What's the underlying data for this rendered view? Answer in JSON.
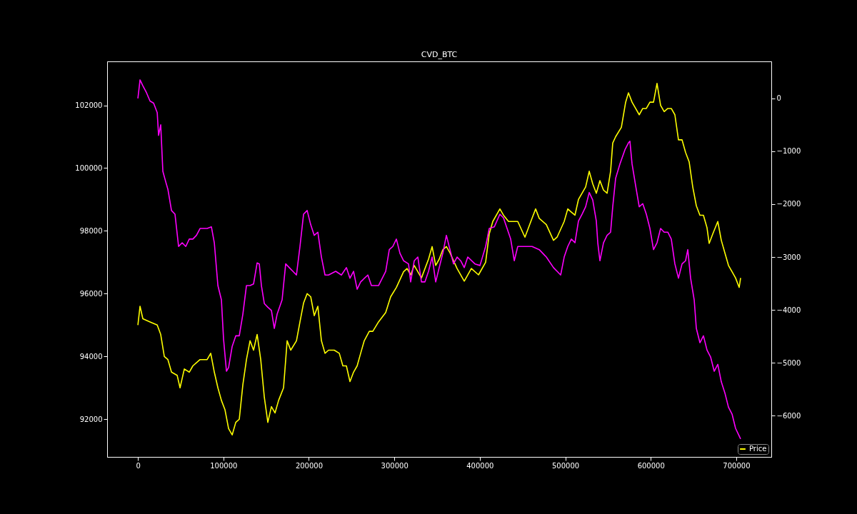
{
  "chart_data": {
    "type": "line",
    "title": "CVD_BTC",
    "xlim": [
      -36000,
      741000
    ],
    "xticks": [
      0,
      100000,
      200000,
      300000,
      400000,
      500000,
      600000,
      700000
    ],
    "ylim": [
      90800,
      103400
    ],
    "yticks": [
      92000,
      94000,
      96000,
      98000,
      100000,
      102000
    ],
    "y2lim": [
      -6780,
      700
    ],
    "y2ticks": [
      -6000,
      -5000,
      -4000,
      -3000,
      -2000,
      -1000,
      0
    ],
    "legend": "bottom right",
    "grid": false,
    "series": [
      {
        "name": "Price",
        "color": "#ffff00",
        "x": [
          0,
          2500,
          5800,
          14200,
          22600,
          26700,
          30900,
          35100,
          39300,
          45900,
          49300,
          54300,
          60100,
          64300,
          72700,
          81000,
          85200,
          89400,
          93600,
          97700,
          101900,
          106100,
          110300,
          114500,
          118600,
          122800,
          127000,
          131200,
          135300,
          139500,
          143700,
          147900,
          152000,
          156200,
          160400,
          164600,
          170400,
          174600,
          178800,
          185500,
          189600,
          193800,
          198000,
          202200,
          206300,
          210500,
          214700,
          218900,
          223000,
          229700,
          235600,
          239800,
          243900,
          248100,
          252300,
          256500,
          260600,
          264800,
          270700,
          274800,
          281500,
          289900,
          295700,
          302400,
          310800,
          314900,
          319100,
          323300,
          331700,
          340000,
          344200,
          348400,
          352500,
          356700,
          360900,
          365100,
          373400,
          381800,
          390100,
          398500,
          406800,
          411000,
          415200,
          423500,
          427700,
          433600,
          440300,
          444400,
          452800,
          461100,
          465300,
          469500,
          477800,
          486200,
          490400,
          498700,
          502900,
          507100,
          511300,
          515400,
          519600,
          523800,
          528000,
          532100,
          536300,
          540500,
          544700,
          548900,
          553000,
          555500,
          558900,
          565600,
          570600,
          573900,
          578100,
          582300,
          586500,
          590600,
          594800,
          599000,
          603200,
          607300,
          611500,
          615700,
          619900,
          624000,
          628200,
          632400,
          636600,
          640700,
          644900,
          649100,
          653300,
          657500,
          661600,
          665800,
          668300,
          672500,
          678400,
          682500,
          686700,
          690900,
          695100,
          699200,
          703400,
          705100
        ],
        "values": [
          95000,
          95600,
          95200,
          95100,
          95000,
          94700,
          94000,
          93900,
          93500,
          93400,
          93000,
          93600,
          93500,
          93700,
          93900,
          93900,
          94100,
          93500,
          93000,
          92600,
          92300,
          91700,
          91500,
          91900,
          92000,
          93100,
          93900,
          94500,
          94200,
          94700,
          93900,
          92700,
          91900,
          92400,
          92200,
          92600,
          93000,
          94500,
          94200,
          94500,
          95100,
          95700,
          96000,
          95900,
          95300,
          95600,
          94500,
          94100,
          94200,
          94200,
          94100,
          93700,
          93700,
          93200,
          93500,
          93700,
          94100,
          94500,
          94800,
          94800,
          95100,
          95400,
          95900,
          96200,
          96700,
          96800,
          96600,
          96900,
          96500,
          97100,
          97500,
          96900,
          97100,
          97400,
          97500,
          97300,
          96800,
          96400,
          96800,
          96600,
          97000,
          97900,
          98300,
          98700,
          98500,
          98300,
          98300,
          98300,
          97800,
          98400,
          98700,
          98400,
          98200,
          97700,
          97800,
          98300,
          98700,
          98600,
          98500,
          99000,
          99200,
          99400,
          99900,
          99500,
          99200,
          99600,
          99300,
          99200,
          99900,
          100800,
          101000,
          101300,
          102100,
          102400,
          102100,
          101900,
          101700,
          101900,
          101900,
          102100,
          102100,
          102700,
          102000,
          101800,
          101900,
          101900,
          101700,
          100900,
          100900,
          100500,
          100200,
          99400,
          98800,
          98500,
          98500,
          98100,
          97600,
          97900,
          98300,
          97700,
          97300,
          96900,
          96700,
          96500,
          96200,
          96500
        ]
      },
      {
        "color": "#ff00ff",
        "axis": "y2",
        "x": [
          0,
          2500,
          5800,
          10000,
          14200,
          18400,
          22600,
          24200,
          26700,
          29200,
          32600,
          35100,
          39300,
          43400,
          47600,
          51800,
          56000,
          60100,
          64300,
          68500,
          72700,
          81000,
          86000,
          89400,
          93600,
          97700,
          100200,
          103600,
          106100,
          110300,
          114500,
          118600,
          122800,
          127000,
          131200,
          135300,
          139500,
          142000,
          144500,
          147900,
          152000,
          156200,
          159600,
          162900,
          168700,
          172900,
          177100,
          181300,
          185500,
          189600,
          193800,
          198000,
          202200,
          206300,
          210500,
          214700,
          218900,
          223000,
          231400,
          238100,
          243900,
          248100,
          252300,
          256500,
          260600,
          269000,
          273200,
          281500,
          289900,
          294100,
          298200,
          302400,
          306600,
          310800,
          316600,
          319100,
          323300,
          327500,
          331700,
          335800,
          340000,
          344200,
          348400,
          352500,
          356700,
          360900,
          365100,
          369200,
          373400,
          377600,
          381800,
          385900,
          394300,
          400200,
          406800,
          411000,
          416900,
          423500,
          427700,
          431900,
          436100,
          440300,
          444400,
          452800,
          461100,
          469500,
          477800,
          486200,
          490400,
          494600,
          498700,
          502900,
          507100,
          511300,
          515400,
          519600,
          523800,
          528000,
          532100,
          536300,
          538000,
          540500,
          544700,
          548900,
          553000,
          555500,
          558900,
          563900,
          569800,
          573900,
          575600,
          578100,
          582300,
          586500,
          590600,
          594800,
          599000,
          603200,
          607300,
          611500,
          615700,
          619900,
          624000,
          628200,
          632400,
          636600,
          640700,
          643300,
          646600,
          650800,
          653300,
          657500,
          661600,
          665800,
          670000,
          674200,
          678400,
          682500,
          686700,
          690900,
          695100,
          699200,
          705100
        ],
        "values": [
          0,
          350,
          240,
          110,
          -50,
          -90,
          -270,
          -700,
          -500,
          -1380,
          -1580,
          -1720,
          -2120,
          -2190,
          -2800,
          -2730,
          -2800,
          -2660,
          -2660,
          -2590,
          -2460,
          -2460,
          -2430,
          -2730,
          -3540,
          -3810,
          -4550,
          -5160,
          -5090,
          -4690,
          -4490,
          -4490,
          -4080,
          -3540,
          -3540,
          -3510,
          -3110,
          -3130,
          -3540,
          -3880,
          -3950,
          -4010,
          -4350,
          -4080,
          -3810,
          -3130,
          -3200,
          -3270,
          -3340,
          -2800,
          -2190,
          -2120,
          -2390,
          -2590,
          -2530,
          -3000,
          -3340,
          -3340,
          -3270,
          -3340,
          -3200,
          -3400,
          -3270,
          -3610,
          -3470,
          -3340,
          -3540,
          -3540,
          -3270,
          -2860,
          -2800,
          -2660,
          -2930,
          -3070,
          -3130,
          -3470,
          -3070,
          -3000,
          -3470,
          -3470,
          -3270,
          -3000,
          -3470,
          -3200,
          -2930,
          -2590,
          -2860,
          -3130,
          -3000,
          -3070,
          -3200,
          -3000,
          -3130,
          -3160,
          -2800,
          -2460,
          -2430,
          -2190,
          -2260,
          -2460,
          -2660,
          -3070,
          -2800,
          -2800,
          -2800,
          -2860,
          -3000,
          -3200,
          -3270,
          -3340,
          -3000,
          -2800,
          -2660,
          -2730,
          -2320,
          -2190,
          -2050,
          -1780,
          -1920,
          -2320,
          -2730,
          -3070,
          -2730,
          -2590,
          -2530,
          -2050,
          -1510,
          -1240,
          -970,
          -840,
          -810,
          -1240,
          -1650,
          -2050,
          -1990,
          -2190,
          -2460,
          -2860,
          -2730,
          -2460,
          -2530,
          -2530,
          -2660,
          -3130,
          -3400,
          -3130,
          -3070,
          -2860,
          -3400,
          -3810,
          -4350,
          -4620,
          -4490,
          -4760,
          -4890,
          -5160,
          -5030,
          -5360,
          -5570,
          -5840,
          -5970,
          -6240,
          -6440
        ]
      }
    ]
  }
}
